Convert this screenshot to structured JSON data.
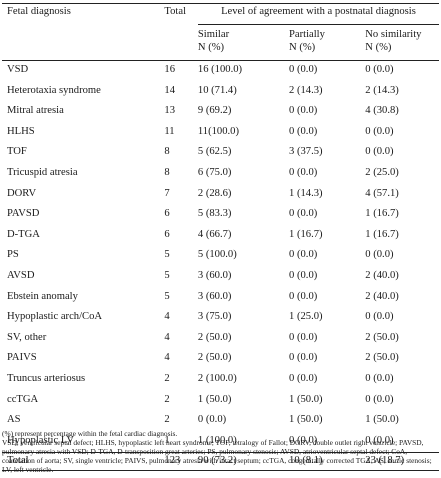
{
  "header": {
    "col_diagnosis": "Fetal diagnosis",
    "col_total": "Total",
    "col_group": "Level of agreement with a postnatal diagnosis",
    "sub_similar": [
      "Similar",
      "N (%)"
    ],
    "sub_partially": [
      "Partially",
      "N (%)"
    ],
    "sub_none": [
      "No similarity",
      "N (%)"
    ]
  },
  "rows": [
    {
      "diagnosis": "VSD",
      "total": "16",
      "similar": "16 (100.0)",
      "partially": "0 (0.0)",
      "none": "0 (0.0)"
    },
    {
      "diagnosis": "Heterotaxia syndrome",
      "total": "14",
      "similar": "10 (71.4)",
      "partially": "2 (14.3)",
      "none": "2 (14.3)"
    },
    {
      "diagnosis": "Mitral atresia",
      "total": "13",
      "similar": "9 (69.2)",
      "partially": "0 (0.0)",
      "none": "4 (30.8)"
    },
    {
      "diagnosis": "HLHS",
      "total": "11",
      "similar": "11(100.0)",
      "partially": "0 (0.0)",
      "none": "0 (0.0)"
    },
    {
      "diagnosis": "TOF",
      "total": "8",
      "similar": "5 (62.5)",
      "partially": "3 (37.5)",
      "none": "0 (0.0)"
    },
    {
      "diagnosis": "Tricuspid atresia",
      "total": "8",
      "similar": "6 (75.0)",
      "partially": "0 (0.0)",
      "none": "2 (25.0)"
    },
    {
      "diagnosis": "DORV",
      "total": "7",
      "similar": "2 (28.6)",
      "partially": "1 (14.3)",
      "none": "4 (57.1)"
    },
    {
      "diagnosis": "PAVSD",
      "total": "6",
      "similar": "5 (83.3)",
      "partially": "0 (0.0)",
      "none": "1 (16.7)"
    },
    {
      "diagnosis": "D-TGA",
      "total": "6",
      "similar": "4 (66.7)",
      "partially": "1 (16.7)",
      "none": "1 (16.7)"
    },
    {
      "diagnosis": "PS",
      "total": "5",
      "similar": "5 (100.0)",
      "partially": "0 (0.0)",
      "none": "0 (0.0)"
    },
    {
      "diagnosis": "AVSD",
      "total": "5",
      "similar": "3 (60.0)",
      "partially": "0 (0.0)",
      "none": "2 (40.0)"
    },
    {
      "diagnosis": "Ebstein anomaly",
      "total": "5",
      "similar": "3 (60.0)",
      "partially": "0 (0.0)",
      "none": "2 (40.0)"
    },
    {
      "diagnosis": "Hypoplastic arch/CoA",
      "total": "4",
      "similar": "3 (75.0)",
      "partially": "1 (25.0)",
      "none": "0 (0.0)"
    },
    {
      "diagnosis": "SV, other",
      "total": "4",
      "similar": "2 (50.0)",
      "partially": "0 (0.0)",
      "none": "2 (50.0)"
    },
    {
      "diagnosis": "PAIVS",
      "total": "4",
      "similar": "2 (50.0)",
      "partially": "0 (0.0)",
      "none": "2 (50.0)"
    },
    {
      "diagnosis": "Truncus arteriosus",
      "total": "2",
      "similar": "2 (100.0)",
      "partially": "0 (0.0)",
      "none": "0 (0.0)"
    },
    {
      "diagnosis": "ccTGA",
      "total": "2",
      "similar": "1 (50.0)",
      "partially": "1 (50.0)",
      "none": "0 (0.0)"
    },
    {
      "diagnosis": "AS",
      "total": "2",
      "similar": "0 (0.0)",
      "partially": "1 (50.0)",
      "none": "1 (50.0)"
    },
    {
      "diagnosis": "Hypoplastic LV",
      "total": "1",
      "similar": "1 (100.0)",
      "partially": "0 (0.0)",
      "none": "0 (0.0)"
    }
  ],
  "total_row": {
    "diagnosis": "Total",
    "total": "123",
    "similar": "90 (73.2)",
    "partially": "10 (8.1)",
    "none": "23 (18.7)"
  },
  "notes": [
    "(%) represent percentage within the fetal cardiac diagnosis.",
    "VSD, ventricular septal defect; HLHS, hypoplastic left heart syndrome; TOF, tetralogy of Fallot; DORV, double outlet right ventricle; PAVSD, pulmonary atresia with VSD; D-TGA, D-transposition great arteries; PS, pulmonary stenosis; AVSD, atrioventricular septal defect; CoA, coarctation of aorta; SV, single ventricle; PAIVS, pulmonary atresia with intact septum; ccTGA, congenitally corrected TGA; AS, aortic stenosis; LV, left ventricle."
  ]
}
